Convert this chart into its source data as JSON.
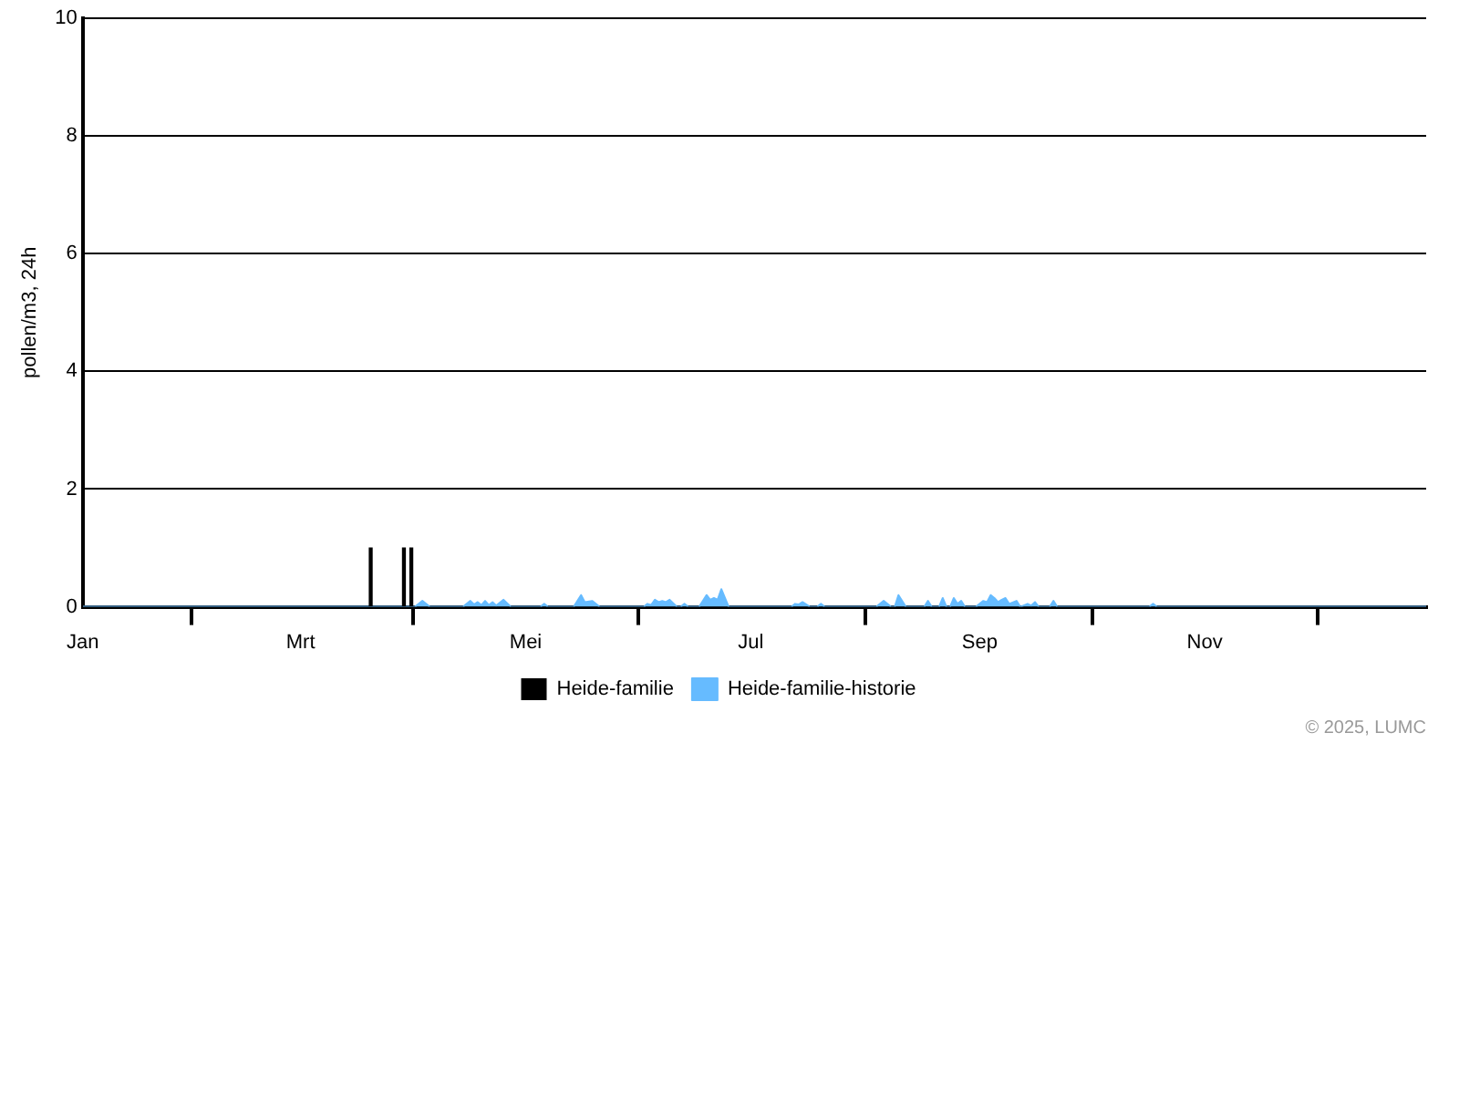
{
  "chart_data": {
    "type": "area",
    "ylabel": "pollen/m3, 24h",
    "annotations": [
      "© 2025, LUMC"
    ],
    "xlim": [
      "--01-01",
      "--12-31"
    ],
    "xticks": [
      {
        "value": "--01-01",
        "label": "Jan"
      },
      {
        "value": "--03-01",
        "label": "Mrt"
      },
      {
        "value": "--05-01",
        "label": "Mei"
      },
      {
        "value": "--07-01",
        "label": "Jul"
      },
      {
        "value": "--09-01",
        "label": "Sep"
      },
      {
        "value": "--11-01",
        "label": "Nov"
      }
    ],
    "ylim": [
      0,
      10
    ],
    "yticks": [
      0,
      2,
      4,
      6,
      8,
      10
    ],
    "grid": "y",
    "legend": "bottom",
    "series": [
      {
        "name": "Heide-familie",
        "type": "bar",
        "color": "#000000",
        "x": [
          "--03-20",
          "--03-29",
          "--03-31"
        ],
        "values": [
          1,
          1,
          1
        ]
      },
      {
        "name": "Heide-familie-historie",
        "color": "#66bbff",
        "x": [
          "--01-01",
          "--04-01",
          "--04-03",
          "--04-05",
          "--04-14",
          "--04-16",
          "--04-17",
          "--04-18",
          "--04-19",
          "--04-20",
          "--04-21",
          "--04-22",
          "--04-23",
          "--04-25",
          "--04-27",
          "--05-05",
          "--05-06",
          "--05-07",
          "--05-14",
          "--05-16",
          "--05-17",
          "--05-19",
          "--05-21",
          "--06-02",
          "--06-03",
          "--06-04",
          "--06-05",
          "--06-06",
          "--06-07",
          "--06-08",
          "--06-09",
          "--06-11",
          "--06-12",
          "--06-13",
          "--06-14",
          "--06-17",
          "--06-19",
          "--06-20",
          "--06-21",
          "--06-22",
          "--06-23",
          "--06-25",
          "--07-12",
          "--07-13",
          "--07-14",
          "--07-15",
          "--07-17",
          "--07-19",
          "--07-20",
          "--07-21",
          "--08-04",
          "--08-06",
          "--08-08",
          "--08-09",
          "--08-10",
          "--08-12",
          "--08-17",
          "--08-18",
          "--08-19",
          "--08-21",
          "--08-22",
          "--08-23",
          "--08-24",
          "--08-25",
          "--08-26",
          "--08-27",
          "--08-28",
          "--08-31",
          "--09-02",
          "--09-03",
          "--09-04",
          "--09-05",
          "--09-06",
          "--09-07",
          "--09-08",
          "--09-09",
          "--09-11",
          "--09-12",
          "--09-14",
          "--09-15",
          "--09-16",
          "--09-17",
          "--09-20",
          "--09-21",
          "--09-22",
          "--10-17",
          "--10-18",
          "--10-19",
          "--12-31"
        ],
        "values": [
          0,
          0,
          0.1,
          0,
          0,
          0.1,
          0.04,
          0.08,
          0.03,
          0.1,
          0.03,
          0.08,
          0.02,
          0.12,
          0,
          0,
          0.05,
          0,
          0,
          0.2,
          0.08,
          0.1,
          0,
          0,
          0.05,
          0.03,
          0.12,
          0.08,
          0.1,
          0.08,
          0.12,
          0,
          0,
          0.05,
          0,
          0,
          0.2,
          0.12,
          0.15,
          0.12,
          0.3,
          0,
          0,
          0.05,
          0.04,
          0.08,
          0,
          0,
          0.05,
          0,
          0,
          0.1,
          0,
          0,
          0.2,
          0,
          0,
          0.1,
          0,
          0,
          0.15,
          0,
          0,
          0.15,
          0.05,
          0.1,
          0,
          0,
          0.1,
          0.08,
          0.2,
          0.15,
          0.08,
          0.12,
          0.15,
          0.05,
          0.1,
          0,
          0.05,
          0.02,
          0.08,
          0,
          0,
          0.1,
          0,
          0,
          0.05,
          0,
          0
        ]
      }
    ]
  }
}
